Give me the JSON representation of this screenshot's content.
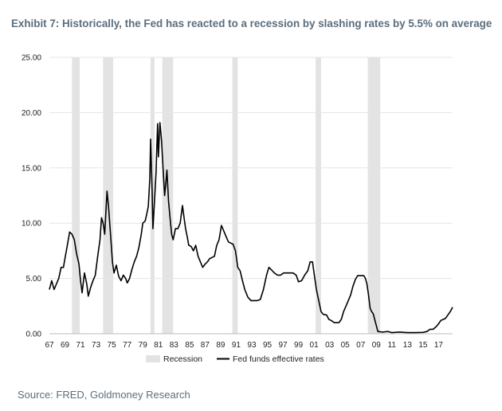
{
  "title": "Exhibit 7: Historically, the Fed has reacted to a recession by slashing rates by 5.5% on average",
  "source": "Source: FRED, Goldmoney Research",
  "chart_data": {
    "type": "line",
    "xlabel": "",
    "ylabel": "",
    "xlim": [
      1967,
      2018.8
    ],
    "ylim": [
      0,
      25
    ],
    "y_ticks": [
      "0.00",
      "5.00",
      "10.00",
      "15.00",
      "20.00",
      "25.00"
    ],
    "y_tick_values": [
      0,
      5,
      10,
      15,
      20,
      25
    ],
    "x_ticks": [
      "67",
      "69",
      "71",
      "73",
      "75",
      "77",
      "79",
      "81",
      "83",
      "85",
      "87",
      "89",
      "91",
      "93",
      "95",
      "97",
      "99",
      "01",
      "03",
      "05",
      "07",
      "09",
      "11",
      "13",
      "15",
      "17"
    ],
    "grid": "horizontal",
    "legend_position": "bottom",
    "colors": {
      "line": "#000000",
      "recession": "#e3e3e3",
      "grid": "#e6e6e6"
    },
    "recessions": [
      {
        "name": "Recession",
        "start": 1969.9,
        "end": 1970.9
      },
      {
        "start": 1973.9,
        "end": 1975.2
      },
      {
        "start": 1980.0,
        "end": 1980.5
      },
      {
        "start": 1981.5,
        "end": 1982.9
      },
      {
        "start": 1990.5,
        "end": 1991.2
      },
      {
        "start": 2001.2,
        "end": 2001.9
      },
      {
        "start": 2007.9,
        "end": 2009.5
      }
    ],
    "series": [
      {
        "name": "Fed funds effective rates",
        "x": [
          1967.0,
          1967.3,
          1967.6,
          1967.9,
          1968.2,
          1968.5,
          1968.8,
          1969.0,
          1969.3,
          1969.6,
          1969.9,
          1970.2,
          1970.5,
          1970.8,
          1971.0,
          1971.2,
          1971.5,
          1971.8,
          1972.0,
          1972.3,
          1972.6,
          1972.9,
          1973.2,
          1973.5,
          1973.7,
          1973.9,
          1974.1,
          1974.4,
          1974.6,
          1974.9,
          1975.1,
          1975.3,
          1975.6,
          1975.9,
          1976.2,
          1976.5,
          1976.8,
          1977.0,
          1977.3,
          1977.6,
          1977.9,
          1978.2,
          1978.5,
          1978.8,
          1979.0,
          1979.3,
          1979.5,
          1979.7,
          1979.9,
          1980.0,
          1980.2,
          1980.3,
          1980.5,
          1980.7,
          1980.9,
          1981.0,
          1981.2,
          1981.4,
          1981.6,
          1981.8,
          1981.95,
          1982.1,
          1982.3,
          1982.5,
          1982.7,
          1982.9,
          1983.2,
          1983.5,
          1983.8,
          1984.1,
          1984.3,
          1984.5,
          1984.7,
          1984.9,
          1985.2,
          1985.5,
          1985.8,
          1986.1,
          1986.4,
          1986.7,
          1987.0,
          1987.3,
          1987.6,
          1987.9,
          1988.2,
          1988.5,
          1988.8,
          1989.1,
          1989.4,
          1989.7,
          1990.0,
          1990.3,
          1990.6,
          1990.9,
          1991.2,
          1991.5,
          1991.8,
          1992.1,
          1992.5,
          1992.9,
          1993.3,
          1993.7,
          1994.1,
          1994.5,
          1994.9,
          1995.2,
          1995.5,
          1995.9,
          1996.3,
          1996.7,
          1997.1,
          1997.5,
          1997.9,
          1998.3,
          1998.7,
          1999.0,
          1999.4,
          1999.8,
          2000.2,
          2000.5,
          2000.8,
          2001.0,
          2001.3,
          2001.6,
          2001.9,
          2002.2,
          2002.6,
          2002.9,
          2003.2,
          2003.6,
          2003.9,
          2004.2,
          2004.5,
          2004.8,
          2005.1,
          2005.4,
          2005.7,
          2006.0,
          2006.3,
          2006.6,
          2007.0,
          2007.4,
          2007.6,
          2007.8,
          2008.0,
          2008.2,
          2008.4,
          2008.6,
          2008.9,
          2009.2,
          2009.8,
          2010.5,
          2011.0,
          2012.0,
          2013.0,
          2014.0,
          2015.0,
          2015.5,
          2015.9,
          2016.3,
          2016.7,
          2017.0,
          2017.3,
          2017.6,
          2017.9,
          2018.2,
          2018.5,
          2018.8
        ],
        "y": [
          4.0,
          4.8,
          4.0,
          4.5,
          5.0,
          6.0,
          6.0,
          6.8,
          8.0,
          9.2,
          9.0,
          8.5,
          7.2,
          6.3,
          4.8,
          3.7,
          5.5,
          4.5,
          3.4,
          4.2,
          4.8,
          5.3,
          7.0,
          8.5,
          10.5,
          10.0,
          9.0,
          12.9,
          11.5,
          8.5,
          6.5,
          5.5,
          6.2,
          5.2,
          4.8,
          5.3,
          5.0,
          4.6,
          5.0,
          5.8,
          6.5,
          7.0,
          7.8,
          9.0,
          10.0,
          10.2,
          10.8,
          11.5,
          14.0,
          17.6,
          13.0,
          9.5,
          12.0,
          14.5,
          19.0,
          16.0,
          19.1,
          17.5,
          15.0,
          12.5,
          13.5,
          14.8,
          12.0,
          10.5,
          9.0,
          8.5,
          9.5,
          9.5,
          10.0,
          11.6,
          10.5,
          9.5,
          8.8,
          8.0,
          7.9,
          7.5,
          8.0,
          7.0,
          6.5,
          6.0,
          6.3,
          6.5,
          6.8,
          6.9,
          7.0,
          8.0,
          8.5,
          9.8,
          9.3,
          8.8,
          8.3,
          8.2,
          8.1,
          7.5,
          6.0,
          5.7,
          4.8,
          4.0,
          3.3,
          3.0,
          3.0,
          3.0,
          3.1,
          4.0,
          5.3,
          6.0,
          5.8,
          5.5,
          5.3,
          5.3,
          5.5,
          5.5,
          5.5,
          5.5,
          5.3,
          4.7,
          4.8,
          5.3,
          5.7,
          6.5,
          6.5,
          5.5,
          4.0,
          3.0,
          2.0,
          1.75,
          1.7,
          1.3,
          1.2,
          1.0,
          1.0,
          1.0,
          1.3,
          2.0,
          2.5,
          3.0,
          3.5,
          4.3,
          4.9,
          5.25,
          5.25,
          5.25,
          5.0,
          4.5,
          3.5,
          2.3,
          2.0,
          1.8,
          1.0,
          0.2,
          0.15,
          0.2,
          0.1,
          0.15,
          0.1,
          0.1,
          0.12,
          0.2,
          0.4,
          0.4,
          0.65,
          0.9,
          1.2,
          1.3,
          1.4,
          1.7,
          2.0,
          2.4
        ]
      }
    ]
  }
}
